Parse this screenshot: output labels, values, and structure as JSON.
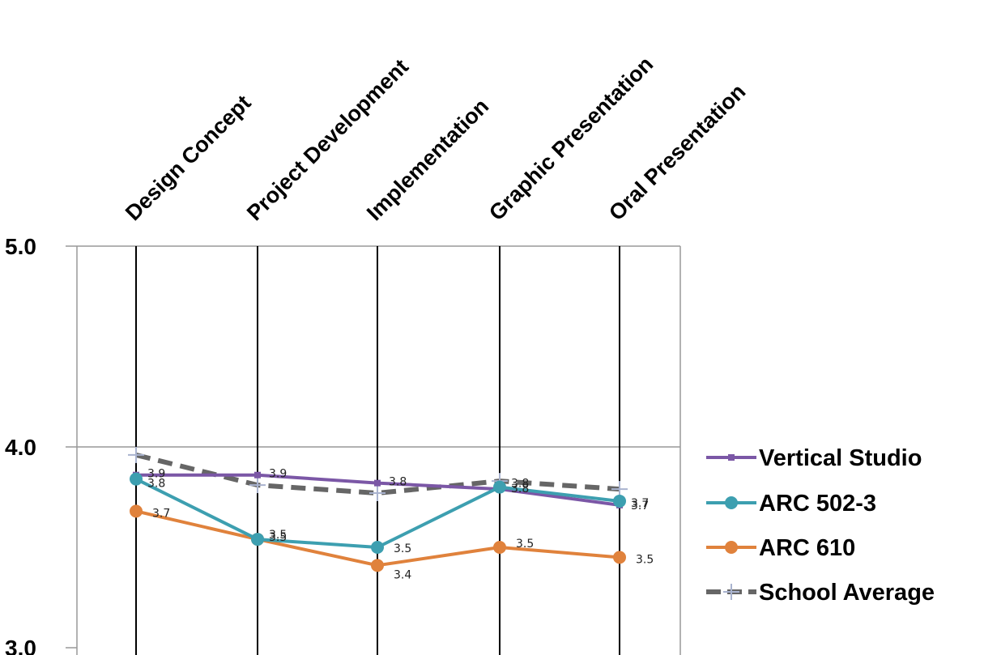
{
  "chart_data": {
    "type": "line",
    "categories": [
      "Design Concept",
      "Project Development",
      "Implementation",
      "Graphic Presentation",
      "Oral Presentation"
    ],
    "y_ticks": [
      "5.0",
      "4.0",
      "3.0"
    ],
    "ylim": [
      3.0,
      5.0
    ],
    "grid": true,
    "legend_position": "right",
    "series": [
      {
        "name": "Vertical Studio",
        "color": "#7b57a6",
        "marker": "square",
        "dash": false,
        "values": [
          3.86,
          3.86,
          3.82,
          3.79,
          3.71
        ],
        "labels": [
          "3.9",
          "3.9",
          "3.8",
          "3.8",
          "3.7"
        ]
      },
      {
        "name": "ARC 502-3",
        "color": "#3d9fb0",
        "marker": "circle",
        "dash": false,
        "values": [
          3.84,
          3.54,
          3.5,
          3.8,
          3.73
        ],
        "labels": [
          "3.8",
          "3.5",
          "3.5",
          "3.8",
          "3.7"
        ]
      },
      {
        "name": "ARC 610",
        "color": "#e0823c",
        "marker": "circle",
        "dash": false,
        "values": [
          3.68,
          3.54,
          3.41,
          3.5,
          3.45
        ],
        "labels": [
          "3.7",
          "3.5",
          "3.4",
          "3.5",
          "3.5"
        ]
      },
      {
        "name": "School Average",
        "color": "#666666",
        "marker": "plus",
        "dash": true,
        "values": [
          3.96,
          3.81,
          3.77,
          3.83,
          3.79
        ],
        "labels": []
      }
    ]
  }
}
